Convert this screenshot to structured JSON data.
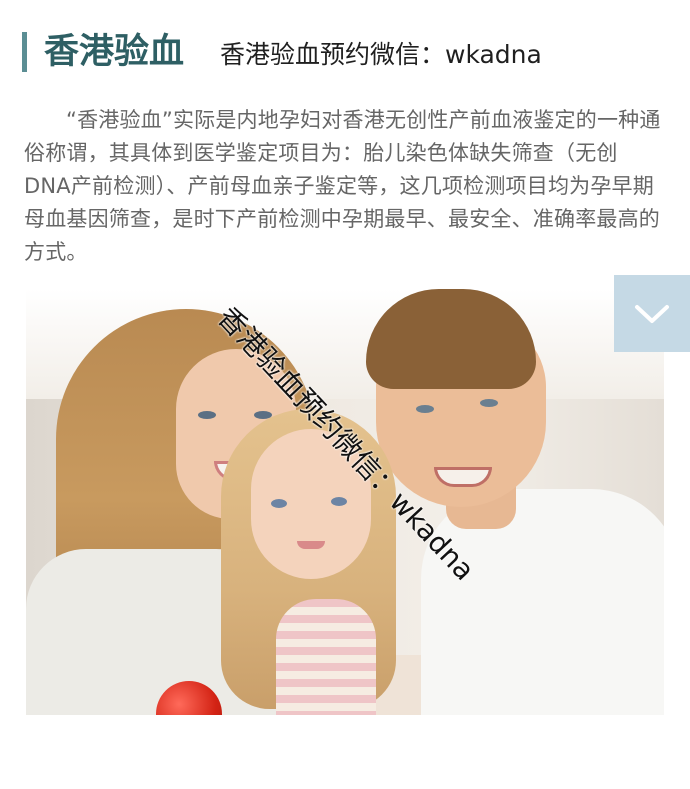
{
  "header": {
    "title": "香港验血",
    "subtitle": "香港验血预约微信：wkadna"
  },
  "article": {
    "intro": "“香港验血”实际是内地孕妇对香港无创性产前血液鉴定的一种通俗称谓，其具体到医学鉴定项目为：胎儿染色体缺失筛查（无创DNA产前检测）、产前母血亲子鉴定等，这几项检测项目均为孕早期母血基因筛查，是时下产前检测中孕期最早、最安全、准确率最高的方式。"
  },
  "photo": {
    "watermark": "香港验血预约微信：wkadna"
  },
  "controls": {
    "scroll_icon": "chevron-down-icon"
  },
  "colors": {
    "accent": "#5b8e94",
    "title": "#2e5f64",
    "scroll_button": "#c5d9e5"
  }
}
